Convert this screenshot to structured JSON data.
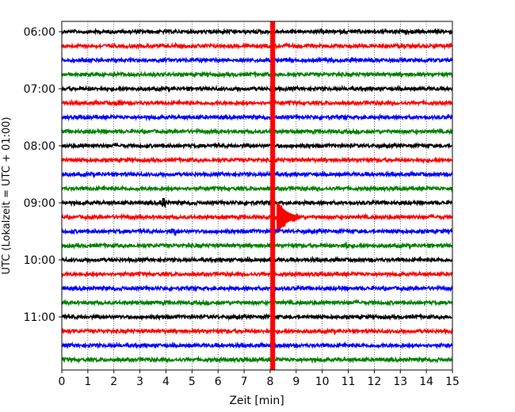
{
  "chart_data": {
    "type": "line",
    "title": "",
    "xlabel": "Zeit  [min]",
    "ylabel": "UTC (Lokalzeit = UTC + 01:00)",
    "xlim": [
      0,
      15
    ],
    "x_ticks": [
      "0",
      "1",
      "2",
      "3",
      "4",
      "5",
      "6",
      "7",
      "8",
      "9",
      "10",
      "11",
      "12",
      "13",
      "14",
      "15"
    ],
    "y_ticks": [
      "06:00",
      "07:00",
      "08:00",
      "09:00",
      "10:00",
      "11:00"
    ],
    "grid": "vertical dotted",
    "trace_colors": [
      "#000000",
      "#ff0000",
      "#0000ff",
      "#008000"
    ],
    "series": [
      {
        "start": "06:00",
        "color": "#000000"
      },
      {
        "start": "06:15",
        "color": "#ff0000"
      },
      {
        "start": "06:30",
        "color": "#0000ff"
      },
      {
        "start": "06:45",
        "color": "#008000"
      },
      {
        "start": "07:00",
        "color": "#000000"
      },
      {
        "start": "07:15",
        "color": "#ff0000"
      },
      {
        "start": "07:30",
        "color": "#0000ff"
      },
      {
        "start": "07:45",
        "color": "#008000"
      },
      {
        "start": "08:00",
        "color": "#000000"
      },
      {
        "start": "08:15",
        "color": "#ff0000"
      },
      {
        "start": "08:30",
        "color": "#0000ff"
      },
      {
        "start": "08:45",
        "color": "#008000"
      },
      {
        "start": "09:00",
        "color": "#000000"
      },
      {
        "start": "09:15",
        "color": "#ff0000"
      },
      {
        "start": "09:30",
        "color": "#0000ff"
      },
      {
        "start": "09:45",
        "color": "#008000"
      },
      {
        "start": "10:00",
        "color": "#000000"
      },
      {
        "start": "10:15",
        "color": "#ff0000"
      },
      {
        "start": "10:30",
        "color": "#0000ff"
      },
      {
        "start": "10:45",
        "color": "#008000"
      },
      {
        "start": "11:00",
        "color": "#000000"
      },
      {
        "start": "11:15",
        "color": "#ff0000"
      },
      {
        "start": "11:30",
        "color": "#0000ff"
      },
      {
        "start": "11:45",
        "color": "#008000"
      }
    ],
    "events": [
      {
        "start": "07:15",
        "t": 2.2,
        "amplitude": 0.35
      },
      {
        "start": "09:00",
        "t": 3.9,
        "amplitude": 0.6
      },
      {
        "start": "09:30",
        "t": 4.3,
        "amplitude": 0.45
      },
      {
        "start": "09:45",
        "t": 10.9,
        "amplitude": 0.35
      },
      {
        "start": "09:15",
        "t": 8.3,
        "amplitude": 2.4
      }
    ],
    "saturated_marker": {
      "t": 8.1,
      "color": "#ff0000"
    }
  }
}
